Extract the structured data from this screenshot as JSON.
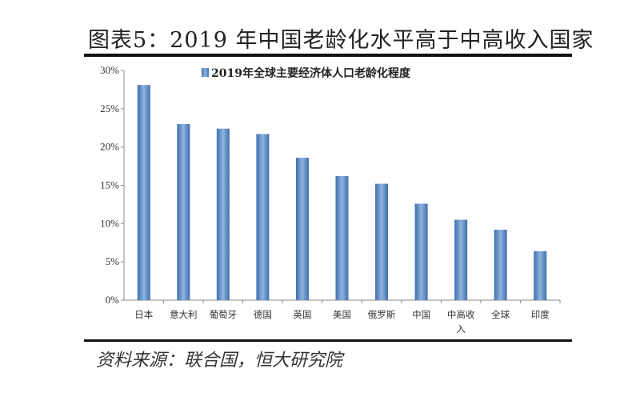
{
  "header": {
    "title": "图表5：2019 年中国老龄化水平高于中高收入国家"
  },
  "footer": {
    "source": "资料来源：联合国，恒大研究院"
  },
  "chart_data": {
    "type": "bar",
    "title": "",
    "categories": [
      "日本",
      "意大利",
      "葡萄牙",
      "德国",
      "英国",
      "美国",
      "俄罗斯",
      "中国",
      "中高收入",
      "全球",
      "印度"
    ],
    "series": [
      {
        "name": "2019年全球主要经济体人口老龄化程度",
        "values": [
          28.1,
          23.0,
          22.4,
          21.7,
          18.6,
          16.2,
          15.2,
          12.6,
          10.5,
          9.2,
          6.4
        ],
        "color": "#5b8ac4"
      }
    ],
    "yticks": [
      "0%",
      "5%",
      "10%",
      "15%",
      "20%",
      "25%",
      "30%"
    ],
    "ylim": [
      0,
      30
    ],
    "xlabel": "",
    "ylabel": "",
    "grid": false,
    "legend": "top-center"
  }
}
